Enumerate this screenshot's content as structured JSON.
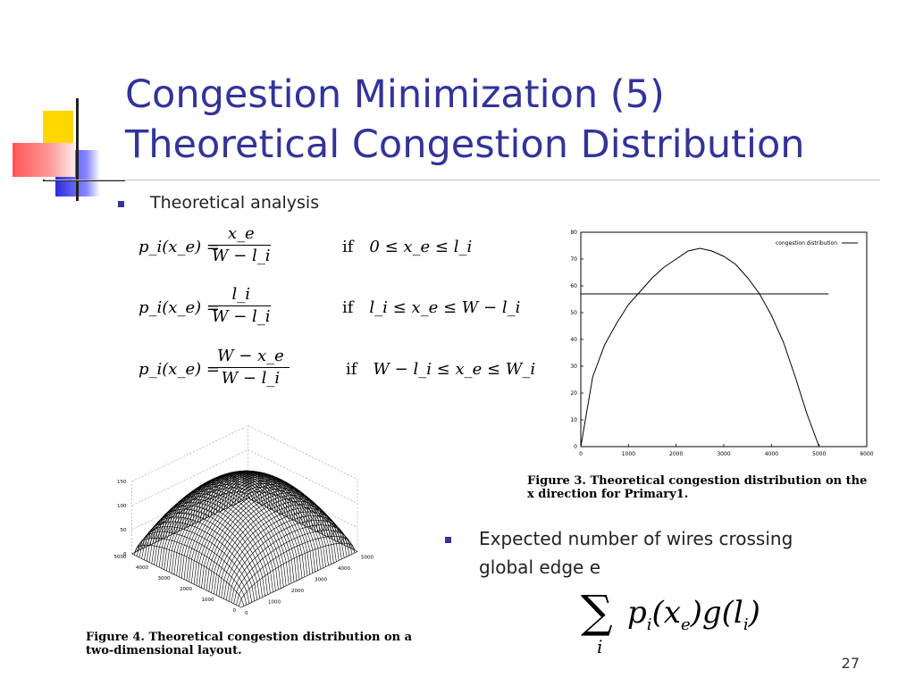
{
  "slide": {
    "title_line1": "Congestion Minimization (5)",
    "title_line2": "Theoretical Congestion Distribution",
    "bullet1": "Theoretical analysis",
    "bullet2_line1": "Expected number of wires crossing",
    "bullet2_line2": "global edge e",
    "page_number": "27",
    "accent_color": "#333399"
  },
  "equations": {
    "lhs": "p_i(x_e) =",
    "if_word": "if",
    "row1": {
      "num": "x_e",
      "den": "W − l_i",
      "cond": "0 ≤ x_e ≤ l_i"
    },
    "row2": {
      "num": "l_i",
      "den": "W − l_i",
      "cond": "l_i ≤ x_e ≤ W − l_i"
    },
    "row3": {
      "num": "W − x_e",
      "den": "W − l_i",
      "cond": "W − l_i ≤ x_e ≤ W_i"
    },
    "sum": "Σ_i p_i(x_e) g(l_i)"
  },
  "figure3": {
    "caption_line1": "Figure 3.  Theoretical congestion distribution on the",
    "caption_line2": "x direction for Primary1.",
    "legend": "congestion distribution",
    "y_ticks": [
      "80",
      "70",
      "60",
      "50",
      "40",
      "30",
      "20",
      "10",
      "0"
    ],
    "x_ticks": [
      "0",
      "1000",
      "2000",
      "3000",
      "4000",
      "5000",
      "6000"
    ],
    "chart_data": {
      "type": "line",
      "series": [
        {
          "name": "congestion distribution",
          "x": [
            0,
            250,
            500,
            750,
            1000,
            1250,
            1500,
            1750,
            2000,
            2250,
            2500,
            2750,
            3000,
            3250,
            3500,
            3750,
            4000,
            4250,
            4500,
            4750,
            5000
          ],
          "y": [
            0,
            26,
            38,
            46,
            53,
            58,
            63,
            67,
            70,
            73,
            74,
            73,
            71,
            68,
            63,
            57,
            49,
            39,
            26,
            12,
            0
          ]
        },
        {
          "name": "",
          "x": [
            0,
            5200
          ],
          "y": [
            57,
            57
          ]
        }
      ],
      "xlim": [
        0,
        6000
      ],
      "ylim": [
        0,
        80
      ]
    }
  },
  "figure4": {
    "caption_line1": "Figure 4.  Theoretical congestion distribution on a",
    "caption_line2": "two-dimensional layout.",
    "z_ticks": [
      "150",
      "100",
      "50",
      "0"
    ],
    "left_axis_ticks": [
      "5000",
      "4000",
      "3000",
      "2000",
      "1000",
      "0"
    ],
    "right_axis_ticks": [
      "0",
      "1000",
      "2000",
      "3000",
      "4000",
      "5000"
    ]
  }
}
